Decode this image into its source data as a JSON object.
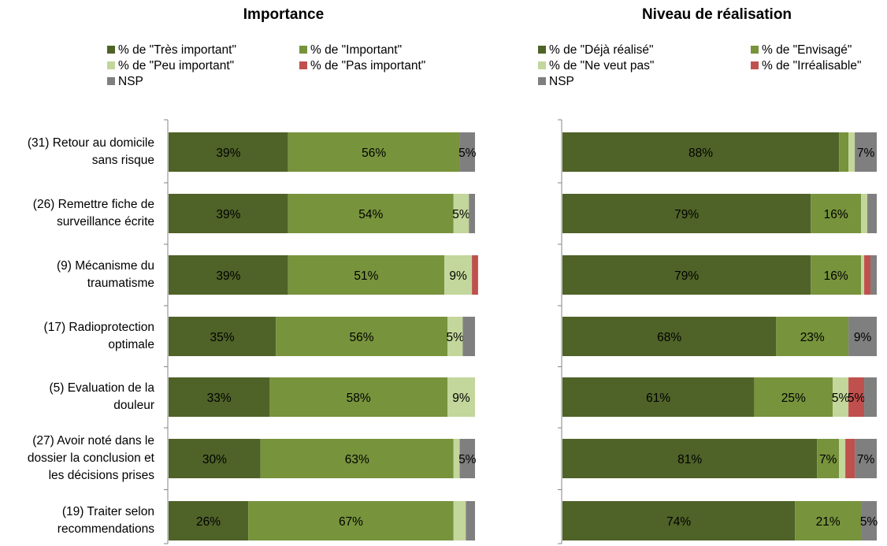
{
  "colors": {
    "tres_important": "#4f6228",
    "important": "#77933c",
    "peu_important": "#c3d69b",
    "pas_important": "#c0504d",
    "nsp": "#7f7f7f"
  },
  "categories": [
    "(31) Retour au domicile sans risque",
    "(26) Remettre fiche de surveillance écrite",
    "(9) Mécanisme du traumatisme",
    "(17) Radioprotection optimale",
    "(5) Evaluation de la douleur",
    "(27) Avoir noté dans le dossier la conclusion et les décisions prises",
    "(19) Traiter selon recommendations"
  ],
  "category_lines": [
    [
      "(31) Retour au domicile",
      "sans risque"
    ],
    [
      "(26) Remettre fiche de",
      "surveillance écrite"
    ],
    [
      "(9) Mécanisme du",
      "traumatisme"
    ],
    [
      "(17) Radioprotection",
      "optimale"
    ],
    [
      "(5) Evaluation de la",
      "douleur"
    ],
    [
      "(27) Avoir noté dans le",
      "dossier la conclusion et",
      "les décisions prises"
    ],
    [
      "(19) Traiter selon",
      "recommendations"
    ]
  ],
  "chart_data": [
    {
      "type": "bar",
      "stacked": true,
      "orientation": "horizontal",
      "title": "Importance",
      "legend_position": "top",
      "categories": [
        "(31) Retour au domicile sans risque",
        "(26) Remettre fiche de surveillance écrite",
        "(9) Mécanisme du traumatisme",
        "(17) Radioprotection optimale",
        "(5) Evaluation de la douleur",
        "(27) Avoir noté dans le dossier la conclusion et les décisions prises",
        "(19) Traiter selon recommendations"
      ],
      "series": [
        {
          "name": "% de \"Très important\"",
          "color": "#4f6228",
          "values": [
            39,
            39,
            39,
            35,
            33,
            30,
            26
          ],
          "labels": [
            "39%",
            "39%",
            "39%",
            "35%",
            "33%",
            "30%",
            "26%"
          ]
        },
        {
          "name": "% de \"Important\"",
          "color": "#77933c",
          "values": [
            56,
            54,
            51,
            56,
            58,
            63,
            67
          ],
          "labels": [
            "56%",
            "54%",
            "51%",
            "56%",
            "58%",
            "63%",
            "67%"
          ]
        },
        {
          "name": "% de \"Peu important\"",
          "color": "#c3d69b",
          "values": [
            0,
            5,
            9,
            5,
            9,
            2,
            4
          ],
          "labels": [
            "",
            "5%",
            "9%",
            "5%",
            "9%",
            "",
            ""
          ]
        },
        {
          "name": "% de \"Pas important\"",
          "color": "#c0504d",
          "values": [
            0,
            0,
            2,
            0,
            0,
            0,
            0
          ],
          "labels": [
            "",
            "",
            "",
            "",
            "",
            "",
            ""
          ]
        },
        {
          "name": "NSP",
          "color": "#7f7f7f",
          "values": [
            5,
            2,
            0,
            4,
            0,
            5,
            3
          ],
          "labels": [
            "5%",
            "",
            "",
            "",
            "",
            "5%",
            ""
          ]
        }
      ],
      "xlim": [
        0,
        100
      ]
    },
    {
      "type": "bar",
      "stacked": true,
      "orientation": "horizontal",
      "title": "Niveau de réalisation",
      "legend_position": "top",
      "categories": [
        "(31) Retour au domicile sans risque",
        "(26) Remettre fiche de surveillance écrite",
        "(9) Mécanisme du traumatisme",
        "(17) Radioprotection optimale",
        "(5) Evaluation de la douleur",
        "(27) Avoir noté dans le dossier la conclusion et les décisions prises",
        "(19) Traiter selon recommendations"
      ],
      "series": [
        {
          "name": "% de \"Déjà réalisé\"",
          "color": "#4f6228",
          "values": [
            88,
            79,
            79,
            68,
            61,
            81,
            74
          ],
          "labels": [
            "88%",
            "79%",
            "79%",
            "68%",
            "61%",
            "81%",
            "74%"
          ]
        },
        {
          "name": "% de \"Envisagé\"",
          "color": "#77933c",
          "values": [
            3,
            16,
            16,
            23,
            25,
            7,
            21
          ],
          "labels": [
            "",
            "16%",
            "16%",
            "23%",
            "25%",
            "7%",
            "21%"
          ]
        },
        {
          "name": "% de \"Ne veut pas\"",
          "color": "#c3d69b",
          "values": [
            2,
            2,
            1,
            0,
            5,
            2,
            0
          ],
          "labels": [
            "",
            "",
            "",
            "",
            "5%",
            "",
            ""
          ]
        },
        {
          "name": "% de \"Irréalisable\"",
          "color": "#c0504d",
          "values": [
            0,
            0,
            2,
            0,
            5,
            3,
            0
          ],
          "labels": [
            "",
            "",
            "",
            "",
            "5%",
            "",
            ""
          ]
        },
        {
          "name": "NSP",
          "color": "#7f7f7f",
          "values": [
            7,
            3,
            2,
            9,
            4,
            7,
            5
          ],
          "labels": [
            "7%",
            "",
            "",
            "9%",
            "",
            "7%",
            "5%"
          ]
        }
      ],
      "xlim": [
        0,
        100
      ]
    }
  ]
}
